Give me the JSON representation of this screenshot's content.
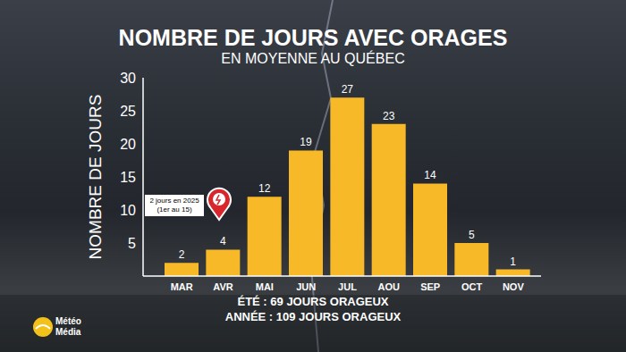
{
  "chart_data": {
    "type": "bar",
    "title": "NOMBRE DE JOURS AVEC ORAGES",
    "subtitle": "EN MOYENNE AU QUÉBEC",
    "y_label": "NOMBRE DE JOURS",
    "categories": [
      "MAR",
      "AVR",
      "MAI",
      "JUN",
      "JUL",
      "AOU",
      "SEP",
      "OCT",
      "NOV"
    ],
    "values": [
      2,
      4,
      12,
      19,
      27,
      23,
      14,
      5,
      1
    ],
    "color": "#f7b928",
    "ylim": [
      0,
      30
    ],
    "yticks": [
      5,
      10,
      15,
      20,
      25,
      30
    ],
    "grid": false,
    "data_labels": true,
    "annotation": [
      "2 jours en 2025",
      "(1er au 15)"
    ],
    "footer": [
      "ÉTÉ : 69 JOURS ORAGEUX",
      "ANNÉE : 109 JOURS ORAGEUX"
    ],
    "logo": [
      "Météo",
      "Média"
    ]
  }
}
